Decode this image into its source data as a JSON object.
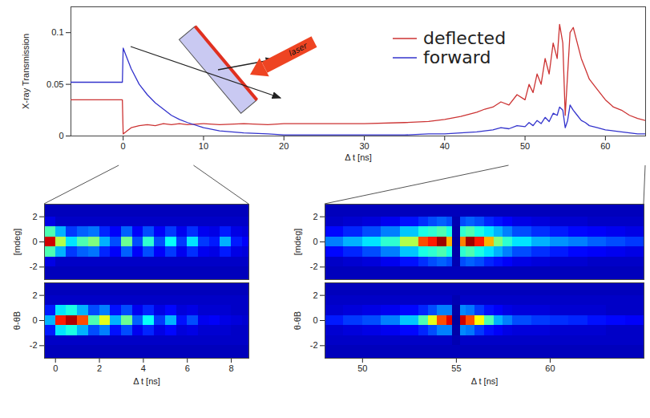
{
  "chart_data": [
    {
      "type": "line",
      "xlabel": "Δ t [ns]",
      "ylabel": "X-ray Transmission",
      "x": [
        -6.5,
        -0.1,
        0,
        0.5,
        1,
        2,
        3,
        4,
        5,
        6,
        7,
        8,
        10,
        12,
        15,
        18,
        20,
        25,
        30,
        35,
        38,
        40,
        42,
        44,
        45,
        46,
        47,
        48,
        49,
        50,
        50.5,
        51,
        51.5,
        52,
        52.5,
        53,
        53.5,
        54,
        54.3,
        54.7,
        55,
        55.3,
        55.6,
        56,
        56.5,
        57,
        57.5,
        58,
        59,
        60,
        61,
        62,
        63,
        64,
        65
      ],
      "series": [
        {
          "name": "deflected",
          "color": "#cc3333",
          "values": [
            0.035,
            0.035,
            0.002,
            0.005,
            0.008,
            0.01,
            0.011,
            0.01,
            0.012,
            0.011,
            0.012,
            0.011,
            0.012,
            0.011,
            0.012,
            0.011,
            0.012,
            0.012,
            0.012,
            0.013,
            0.014,
            0.016,
            0.019,
            0.023,
            0.026,
            0.028,
            0.033,
            0.03,
            0.04,
            0.035,
            0.05,
            0.042,
            0.06,
            0.05,
            0.075,
            0.06,
            0.09,
            0.075,
            0.108,
            0.09,
            0.02,
            0.06,
            0.1,
            0.105,
            0.09,
            0.075,
            0.065,
            0.055,
            0.045,
            0.035,
            0.028,
            0.025,
            0.02,
            0.017,
            0.015
          ]
        },
        {
          "name": "forward",
          "color": "#3333cc",
          "values": [
            0.052,
            0.052,
            0.085,
            0.075,
            0.065,
            0.05,
            0.04,
            0.032,
            0.026,
            0.02,
            0.016,
            0.013,
            0.008,
            0.005,
            0.003,
            0.002,
            0.001,
            0.001,
            0.001,
            0.001,
            0.002,
            0.002,
            0.003,
            0.004,
            0.005,
            0.006,
            0.008,
            0.007,
            0.01,
            0.009,
            0.013,
            0.01,
            0.015,
            0.012,
            0.018,
            0.014,
            0.022,
            0.02,
            0.028,
            0.025,
            0.008,
            0.015,
            0.03,
            0.025,
            0.02,
            0.015,
            0.013,
            0.01,
            0.008,
            0.006,
            0.005,
            0.004,
            0.003,
            0.002,
            0.002
          ]
        }
      ],
      "xlim": [
        -6.5,
        65
      ],
      "xticks": [
        0,
        10,
        20,
        30,
        40,
        50,
        60
      ],
      "ylim": [
        0,
        0.125
      ],
      "yticks": [
        0,
        0.05,
        0.1
      ],
      "legend": "top-right",
      "annotations": [
        "laser"
      ]
    },
    {
      "type": "heatmap",
      "ylabel": "[mdeg]",
      "tick_labels": "y",
      "xlim": [
        -0.5,
        8.8
      ],
      "ylim": [
        -3,
        3
      ],
      "yticks": [
        -2,
        0,
        2
      ],
      "color_range": [
        0,
        1
      ],
      "x_edges": [
        -0.5,
        0,
        0.5,
        1,
        1.5,
        2,
        2.5,
        3,
        3.5,
        4,
        4.5,
        5,
        5.5,
        6,
        6.5,
        7,
        7.5,
        8,
        8.5,
        9
      ],
      "y_edges": [
        -3,
        -2,
        -1.2,
        -0.4,
        0.4,
        1.2,
        2,
        3
      ],
      "cells": [
        [
          0.06,
          0.06,
          0.06,
          0.06,
          0.06,
          0.06,
          0.06,
          0.06,
          0.06,
          0.06,
          0.06,
          0.06,
          0.06,
          0.06,
          0.06,
          0.06,
          0.06,
          0.06,
          0.06
        ],
        [
          0.1,
          0.07,
          0.07,
          0.07,
          0.07,
          0.07,
          0.07,
          0.07,
          0.07,
          0.07,
          0.07,
          0.07,
          0.07,
          0.07,
          0.07,
          0.07,
          0.07,
          0.07,
          0.07
        ],
        [
          0.45,
          0.3,
          0.18,
          0.22,
          0.24,
          0.16,
          0.12,
          0.22,
          0.12,
          0.2,
          0.12,
          0.18,
          0.11,
          0.17,
          0.11,
          0.1,
          0.15,
          0.1,
          0.09
        ],
        [
          0.92,
          0.55,
          0.35,
          0.45,
          0.5,
          0.3,
          0.2,
          0.48,
          0.2,
          0.42,
          0.2,
          0.38,
          0.18,
          0.35,
          0.18,
          0.15,
          0.3,
          0.15,
          0.12
        ],
        [
          0.45,
          0.3,
          0.18,
          0.22,
          0.24,
          0.16,
          0.12,
          0.22,
          0.12,
          0.2,
          0.12,
          0.18,
          0.11,
          0.17,
          0.11,
          0.1,
          0.15,
          0.1,
          0.09
        ],
        [
          0.1,
          0.07,
          0.07,
          0.07,
          0.07,
          0.07,
          0.07,
          0.07,
          0.07,
          0.07,
          0.07,
          0.07,
          0.07,
          0.07,
          0.07,
          0.07,
          0.07,
          0.07,
          0.07
        ],
        [
          0.06,
          0.06,
          0.06,
          0.06,
          0.06,
          0.06,
          0.06,
          0.06,
          0.06,
          0.06,
          0.06,
          0.06,
          0.06,
          0.06,
          0.06,
          0.06,
          0.06,
          0.06,
          0.06
        ]
      ]
    },
    {
      "type": "heatmap",
      "xlabel": "Δ t [ns]",
      "ylabel": "θ-θB",
      "xlim": [
        -0.5,
        8.8
      ],
      "xticks": [
        0,
        2,
        4,
        6,
        8
      ],
      "ylim": [
        -3,
        3
      ],
      "yticks": [
        -2,
        0,
        2
      ],
      "color_range": [
        0,
        1
      ],
      "x_edges": [
        -0.5,
        0,
        0.5,
        1,
        1.5,
        2,
        2.5,
        3,
        3.5,
        4,
        4.5,
        5,
        5.5,
        6,
        6.5,
        7,
        7.5,
        8,
        8.5,
        9
      ],
      "y_edges": [
        -3,
        -2,
        -1.2,
        -0.4,
        0.4,
        1.2,
        2,
        3
      ],
      "cells": [
        [
          0.06,
          0.06,
          0.06,
          0.06,
          0.06,
          0.06,
          0.06,
          0.06,
          0.06,
          0.06,
          0.06,
          0.06,
          0.06,
          0.06,
          0.06,
          0.06,
          0.06,
          0.06,
          0.06
        ],
        [
          0.07,
          0.07,
          0.07,
          0.07,
          0.07,
          0.07,
          0.07,
          0.07,
          0.07,
          0.07,
          0.07,
          0.07,
          0.07,
          0.07,
          0.07,
          0.07,
          0.07,
          0.07,
          0.07
        ],
        [
          0.15,
          0.35,
          0.4,
          0.3,
          0.2,
          0.25,
          0.14,
          0.2,
          0.11,
          0.16,
          0.1,
          0.13,
          0.09,
          0.1,
          0.08,
          0.08,
          0.08,
          0.07,
          0.07
        ],
        [
          0.3,
          0.85,
          0.95,
          0.8,
          0.45,
          0.6,
          0.3,
          0.48,
          0.22,
          0.38,
          0.18,
          0.3,
          0.14,
          0.2,
          0.11,
          0.12,
          0.1,
          0.09,
          0.08
        ],
        [
          0.15,
          0.35,
          0.4,
          0.3,
          0.2,
          0.25,
          0.14,
          0.2,
          0.11,
          0.16,
          0.1,
          0.13,
          0.09,
          0.1,
          0.08,
          0.08,
          0.08,
          0.07,
          0.07
        ],
        [
          0.07,
          0.07,
          0.07,
          0.07,
          0.07,
          0.07,
          0.07,
          0.07,
          0.07,
          0.07,
          0.07,
          0.07,
          0.07,
          0.07,
          0.07,
          0.07,
          0.07,
          0.07,
          0.07
        ],
        [
          0.06,
          0.06,
          0.06,
          0.06,
          0.06,
          0.06,
          0.06,
          0.06,
          0.06,
          0.06,
          0.06,
          0.06,
          0.06,
          0.06,
          0.06,
          0.06,
          0.06,
          0.06,
          0.06
        ]
      ]
    },
    {
      "type": "heatmap",
      "ylabel": "[mdeg]",
      "tick_labels": "y",
      "xlim": [
        48,
        65
      ],
      "ylim": [
        -3,
        3
      ],
      "yticks": [
        -2,
        0,
        2
      ],
      "color_range": [
        0,
        1
      ],
      "x_edges": [
        48,
        49,
        50,
        51,
        52,
        53,
        53.5,
        54,
        54.5,
        54.8,
        55.2,
        55.5,
        56,
        56.5,
        57,
        57.5,
        58,
        59,
        60,
        61,
        62,
        63,
        64,
        65
      ],
      "y_edges": [
        -3,
        -2,
        -1.2,
        -0.4,
        0.4,
        1.2,
        2,
        3
      ],
      "cells": [
        [
          0.06,
          0.06,
          0.06,
          0.06,
          0.06,
          0.06,
          0.06,
          0.06,
          0.06,
          0.06,
          0.06,
          0.06,
          0.06,
          0.06,
          0.06,
          0.06,
          0.06,
          0.06,
          0.06,
          0.06,
          0.06,
          0.06,
          0.06
        ],
        [
          0.07,
          0.08,
          0.09,
          0.11,
          0.14,
          0.17,
          0.2,
          0.22,
          0.2,
          0.05,
          0.2,
          0.22,
          0.2,
          0.16,
          0.14,
          0.12,
          0.1,
          0.09,
          0.08,
          0.08,
          0.07,
          0.07,
          0.07
        ],
        [
          0.13,
          0.16,
          0.2,
          0.25,
          0.32,
          0.4,
          0.42,
          0.45,
          0.4,
          0.04,
          0.42,
          0.45,
          0.4,
          0.35,
          0.3,
          0.25,
          0.2,
          0.17,
          0.15,
          0.13,
          0.12,
          0.11,
          0.1
        ],
        [
          0.25,
          0.3,
          0.35,
          0.42,
          0.55,
          0.8,
          0.85,
          0.97,
          0.7,
          0.03,
          0.75,
          0.97,
          0.85,
          0.7,
          0.5,
          0.42,
          0.35,
          0.3,
          0.27,
          0.25,
          0.22,
          0.2,
          0.18
        ],
        [
          0.13,
          0.16,
          0.2,
          0.25,
          0.32,
          0.4,
          0.42,
          0.45,
          0.4,
          0.04,
          0.42,
          0.45,
          0.4,
          0.35,
          0.3,
          0.25,
          0.2,
          0.17,
          0.15,
          0.13,
          0.12,
          0.11,
          0.1
        ],
        [
          0.07,
          0.08,
          0.09,
          0.11,
          0.14,
          0.17,
          0.2,
          0.22,
          0.2,
          0.05,
          0.2,
          0.22,
          0.2,
          0.16,
          0.14,
          0.12,
          0.1,
          0.09,
          0.08,
          0.08,
          0.07,
          0.07,
          0.07
        ],
        [
          0.06,
          0.06,
          0.06,
          0.06,
          0.06,
          0.06,
          0.06,
          0.06,
          0.06,
          0.06,
          0.06,
          0.06,
          0.06,
          0.06,
          0.06,
          0.06,
          0.06,
          0.06,
          0.06,
          0.06,
          0.06,
          0.06,
          0.06
        ]
      ]
    },
    {
      "type": "heatmap",
      "xlabel": "Δ t [ns]",
      "ylabel": "θ-θB",
      "xlim": [
        48,
        65
      ],
      "xticks": [
        50,
        55,
        60
      ],
      "ylim": [
        -3,
        3
      ],
      "yticks": [
        -2,
        0,
        2
      ],
      "color_range": [
        0,
        1
      ],
      "x_edges": [
        48,
        49,
        50,
        51,
        52,
        53,
        53.5,
        54,
        54.5,
        54.8,
        55.2,
        55.5,
        56,
        56.5,
        57,
        57.5,
        58,
        59,
        60,
        61,
        62,
        63,
        64,
        65
      ],
      "y_edges": [
        -3,
        -2,
        -1.2,
        -0.4,
        0.4,
        1.2,
        2,
        3
      ],
      "cells": [
        [
          0.06,
          0.06,
          0.06,
          0.06,
          0.06,
          0.06,
          0.06,
          0.06,
          0.06,
          0.06,
          0.06,
          0.06,
          0.06,
          0.06,
          0.06,
          0.06,
          0.06,
          0.06,
          0.06,
          0.06,
          0.06,
          0.06,
          0.06
        ],
        [
          0.07,
          0.07,
          0.07,
          0.07,
          0.07,
          0.07,
          0.07,
          0.07,
          0.07,
          0.05,
          0.07,
          0.07,
          0.07,
          0.07,
          0.07,
          0.07,
          0.07,
          0.07,
          0.07,
          0.07,
          0.07,
          0.07,
          0.07
        ],
        [
          0.08,
          0.09,
          0.1,
          0.11,
          0.13,
          0.16,
          0.2,
          0.25,
          0.25,
          0.04,
          0.26,
          0.24,
          0.18,
          0.14,
          0.12,
          0.1,
          0.09,
          0.09,
          0.08,
          0.08,
          0.08,
          0.07,
          0.07
        ],
        [
          0.15,
          0.18,
          0.2,
          0.25,
          0.32,
          0.45,
          0.6,
          0.8,
          0.9,
          0.03,
          0.92,
          0.8,
          0.62,
          0.45,
          0.3,
          0.25,
          0.2,
          0.18,
          0.17,
          0.16,
          0.14,
          0.13,
          0.12
        ],
        [
          0.08,
          0.09,
          0.1,
          0.11,
          0.13,
          0.16,
          0.2,
          0.25,
          0.25,
          0.04,
          0.26,
          0.24,
          0.18,
          0.14,
          0.12,
          0.1,
          0.09,
          0.09,
          0.08,
          0.08,
          0.08,
          0.07,
          0.07
        ],
        [
          0.07,
          0.07,
          0.07,
          0.07,
          0.07,
          0.07,
          0.07,
          0.07,
          0.07,
          0.05,
          0.07,
          0.07,
          0.07,
          0.07,
          0.07,
          0.07,
          0.07,
          0.07,
          0.07,
          0.07,
          0.07,
          0.07,
          0.07
        ],
        [
          0.06,
          0.06,
          0.06,
          0.06,
          0.06,
          0.06,
          0.06,
          0.06,
          0.06,
          0.06,
          0.06,
          0.06,
          0.06,
          0.06,
          0.06,
          0.06,
          0.06,
          0.06,
          0.06,
          0.06,
          0.06,
          0.06,
          0.06
        ]
      ]
    }
  ]
}
